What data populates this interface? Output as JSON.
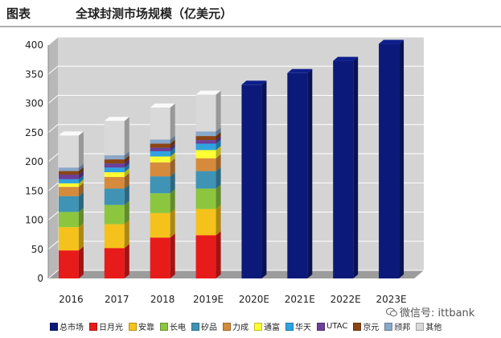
{
  "header": {
    "label": "图表",
    "title": "全球封测市场规模（亿美元）"
  },
  "watermark": {
    "text": "微信号: ittbank",
    "icon": "wechat-icon"
  },
  "chart_data": {
    "type": "bar",
    "stacked": true,
    "three_d": true,
    "title": "全球封测市场规模（亿美元）",
    "xlabel": "",
    "ylabel": "",
    "ylim": [
      0,
      400
    ],
    "yticks": [
      0,
      50,
      100,
      150,
      200,
      250,
      300,
      350,
      400
    ],
    "grid": true,
    "legend_position": "bottom",
    "categories": [
      "2016",
      "2017",
      "2018",
      "2019E",
      "2020E",
      "2021E",
      "2022E",
      "2023E"
    ],
    "series": [
      {
        "name": "总市场",
        "color": "#0b1a7a",
        "values": [
          0,
          0,
          0,
          0,
          332,
          352,
          373,
          402
        ]
      },
      {
        "name": "日月光",
        "color": "#e81b1b",
        "values": [
          48,
          52,
          70,
          74,
          0,
          0,
          0,
          0
        ]
      },
      {
        "name": "安靠",
        "color": "#f5c21b",
        "values": [
          40,
          41,
          42,
          45,
          0,
          0,
          0,
          0
        ]
      },
      {
        "name": "长电",
        "color": "#8cc63f",
        "values": [
          26,
          33,
          34,
          35,
          0,
          0,
          0,
          0
        ]
      },
      {
        "name": "矽品",
        "color": "#3f93b5",
        "values": [
          27,
          28,
          29,
          30,
          0,
          0,
          0,
          0
        ]
      },
      {
        "name": "力成",
        "color": "#d68a3c",
        "values": [
          16,
          20,
          24,
          22,
          0,
          0,
          0,
          0
        ]
      },
      {
        "name": "通富",
        "color": "#ffff33",
        "values": [
          6,
          8,
          10,
          14,
          0,
          0,
          0,
          0
        ]
      },
      {
        "name": "华天",
        "color": "#2fa3e0",
        "values": [
          7,
          8,
          9,
          11,
          0,
          0,
          0,
          0
        ]
      },
      {
        "name": "UTAC",
        "color": "#6b3f99",
        "values": [
          8,
          7,
          6,
          6,
          0,
          0,
          0,
          0
        ]
      },
      {
        "name": "京元",
        "color": "#8b4513",
        "values": [
          6,
          7,
          7,
          7,
          0,
          0,
          0,
          0
        ]
      },
      {
        "name": "颀邦",
        "color": "#8aa8c9",
        "values": [
          6,
          7,
          7,
          8,
          0,
          0,
          0,
          0
        ]
      },
      {
        "name": "其他",
        "color": "#d9d9d9",
        "values": [
          55,
          59,
          55,
          63,
          0,
          0,
          0,
          0
        ]
      }
    ]
  }
}
